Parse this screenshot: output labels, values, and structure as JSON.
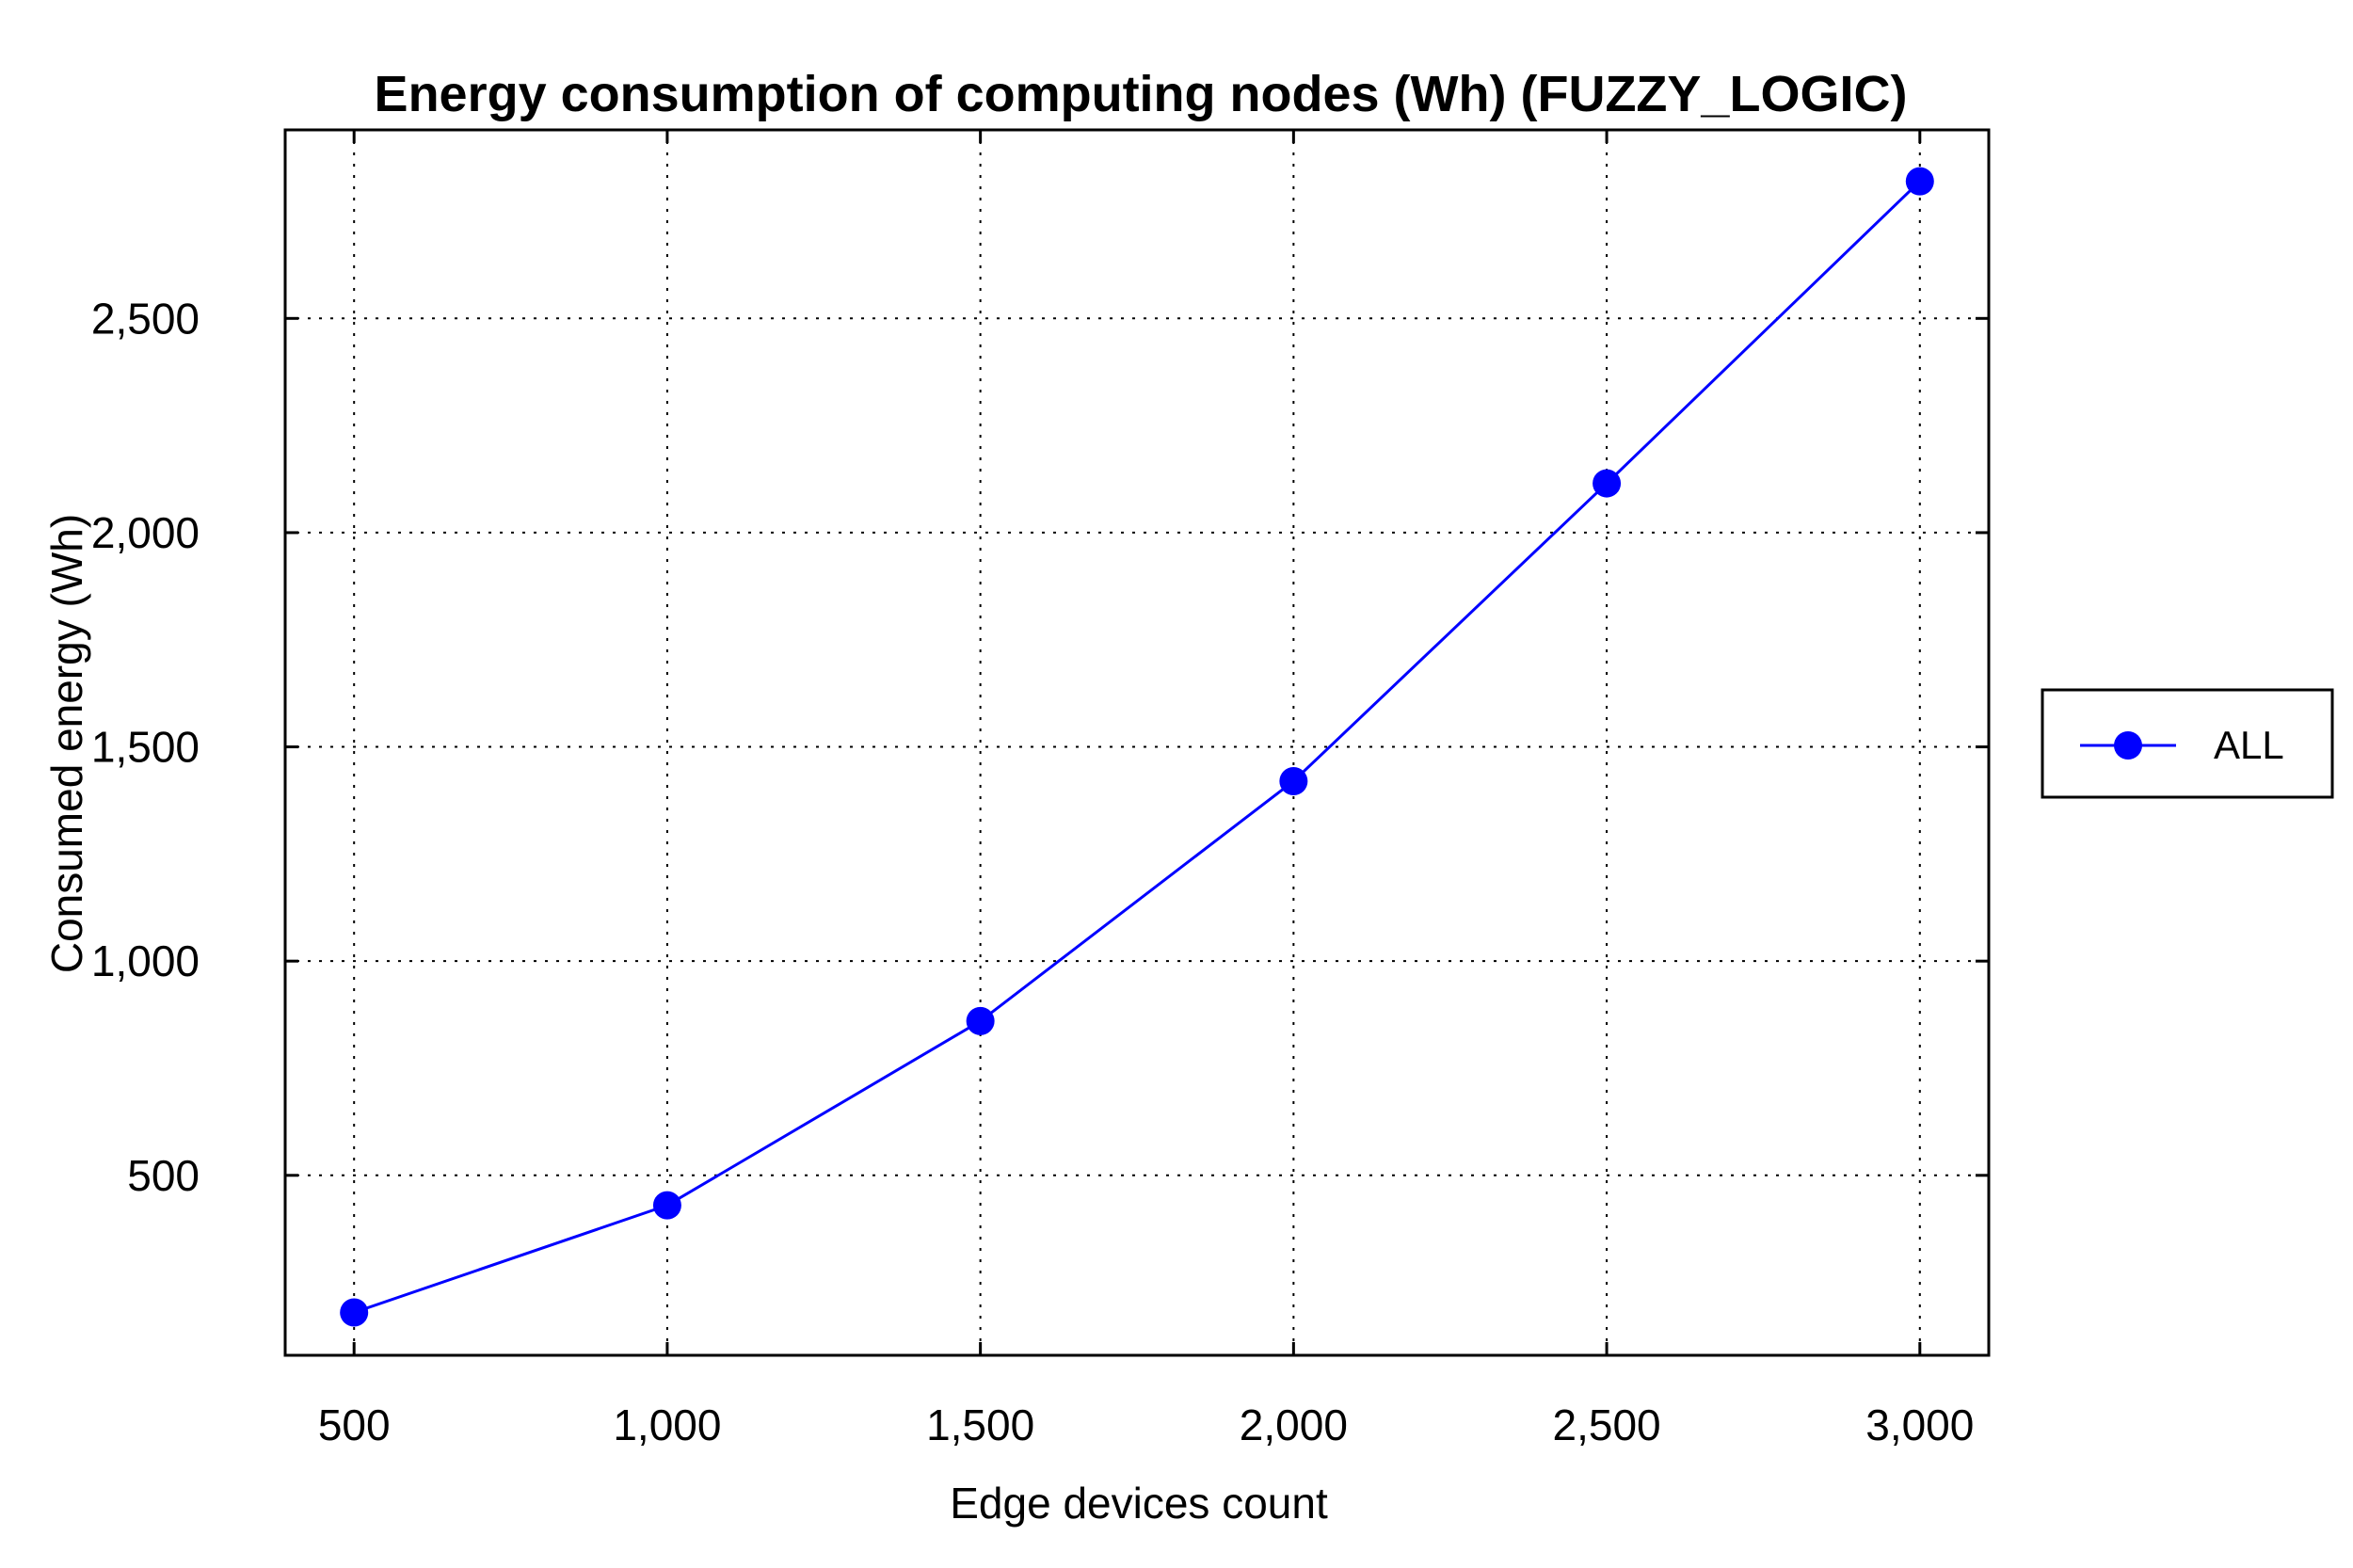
{
  "chart_data": {
    "type": "line",
    "title": "Energy consumption of computing nodes (Wh) (FUZZY_LOGIC)",
    "xlabel": "Edge devices count",
    "ylabel": "Consumed energy (Wh)",
    "x": [
      500,
      1000,
      1500,
      2000,
      2500,
      3000
    ],
    "x_tick_labels": [
      "500",
      "1,000",
      "1,500",
      "2,000",
      "2,500",
      "3,000"
    ],
    "y_ticks": [
      500,
      1000,
      1500,
      2000,
      2500
    ],
    "y_tick_labels": [
      "500",
      "1,000",
      "1,500",
      "2,000",
      "2,500"
    ],
    "xlim": [
      390,
      3110
    ],
    "ylim": [
      80,
      2940
    ],
    "grid": true,
    "legend_position": "outside right",
    "series": [
      {
        "name": "ALL",
        "color": "#0000ff",
        "marker": "circle",
        "values": [
          180,
          430,
          860,
          1420,
          2115,
          2820
        ]
      }
    ]
  }
}
